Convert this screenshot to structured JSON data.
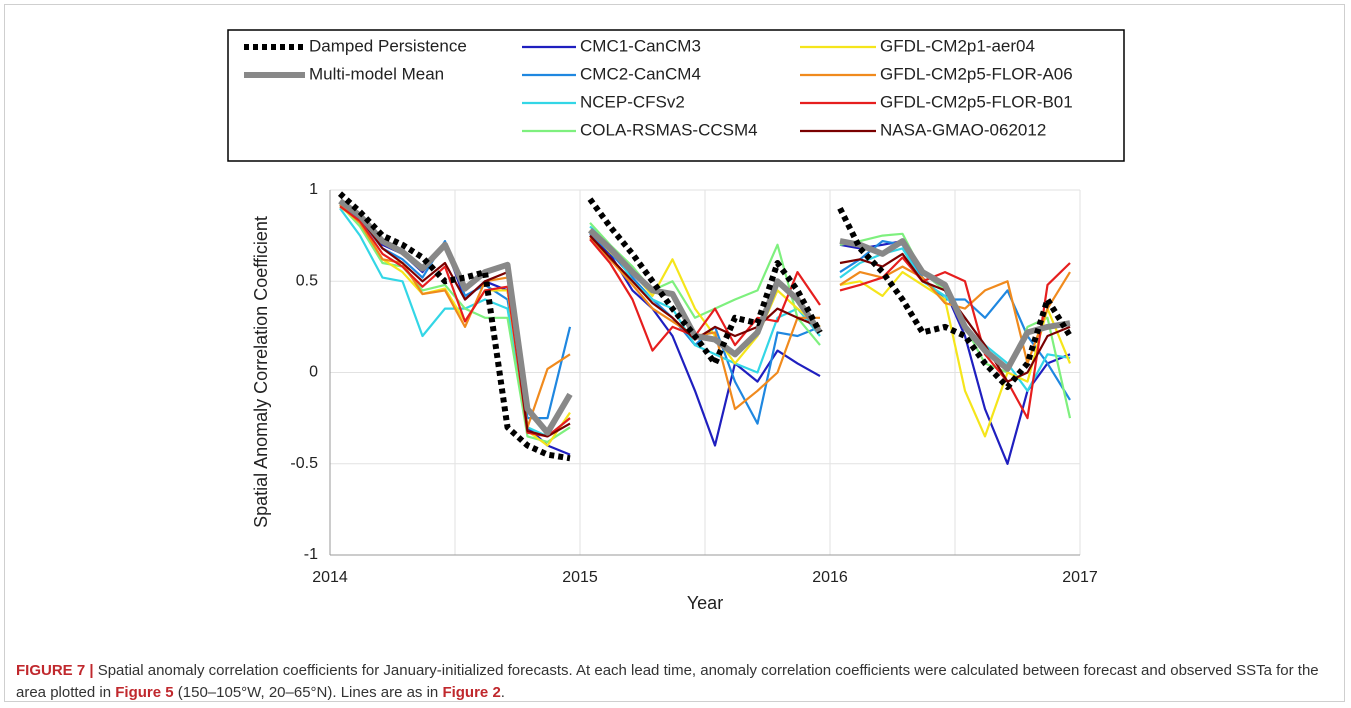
{
  "chart_data": {
    "type": "line",
    "y_label": "Spatial Anomaly Correlation Coefficient",
    "x_label": "Year",
    "x": [
      2014.04,
      2014.12,
      2014.21,
      2014.29,
      2014.37,
      2014.46,
      2014.54,
      2014.62,
      2014.71,
      2014.79,
      2014.87,
      2014.96,
      2015,
      2015.04,
      2015.12,
      2015.21,
      2015.29,
      2015.37,
      2015.46,
      2015.54,
      2015.62,
      2015.71,
      2015.79,
      2015.87,
      2015.96,
      2016,
      2016.04,
      2016.12,
      2016.21,
      2016.29,
      2016.37,
      2016.46,
      2016.54,
      2016.62,
      2016.71,
      2016.79,
      2016.87,
      2016.96
    ],
    "xlim": [
      2014,
      2017
    ],
    "xticks": [
      2014,
      2015,
      2016,
      2017
    ],
    "ylim": [
      -1,
      1
    ],
    "yticks": [
      -1,
      -0.5,
      0,
      0.5,
      1
    ],
    "grid": true,
    "series": [
      {
        "name": "Damped Persistence",
        "color": "#000000",
        "style": "dotted",
        "values": [
          0.98,
          0.88,
          0.75,
          0.7,
          0.63,
          0.5,
          0.52,
          0.55,
          -0.3,
          -0.4,
          -0.45,
          -0.47,
          null,
          0.95,
          0.8,
          0.65,
          0.5,
          0.35,
          0.2,
          0.05,
          0.3,
          0.27,
          0.6,
          0.45,
          0.22,
          null,
          0.9,
          0.68,
          0.55,
          0.4,
          0.22,
          0.25,
          0.2,
          0.05,
          -0.08,
          0.05,
          0.4,
          0.2
        ]
      },
      {
        "name": "Multi-model Mean",
        "color": "#888888",
        "style": "thick",
        "values": [
          0.94,
          0.86,
          0.72,
          0.66,
          0.57,
          0.7,
          0.46,
          0.55,
          0.59,
          -0.2,
          -0.33,
          -0.12,
          null,
          0.78,
          0.68,
          0.55,
          0.45,
          0.43,
          0.2,
          0.18,
          0.1,
          0.22,
          0.5,
          0.4,
          0.22,
          null,
          0.72,
          0.7,
          0.65,
          0.72,
          0.55,
          0.48,
          0.25,
          0.12,
          0.02,
          0.22,
          0.25,
          0.27
        ]
      },
      {
        "name": "CMC1-CanCM3",
        "color": "#1f1fbf",
        "values": [
          0.92,
          0.85,
          0.7,
          0.65,
          0.55,
          0.7,
          0.4,
          0.5,
          0.45,
          -0.3,
          -0.4,
          -0.45,
          null,
          0.75,
          0.65,
          0.45,
          0.35,
          0.2,
          -0.1,
          -0.4,
          0.05,
          -0.05,
          0.12,
          0.05,
          -0.02,
          null,
          0.7,
          0.68,
          0.7,
          0.72,
          0.55,
          0.45,
          0.2,
          -0.2,
          -0.5,
          -0.1,
          0.05,
          0.1
        ]
      },
      {
        "name": "CMC2-CanCM4",
        "color": "#1f87e0",
        "values": [
          0.93,
          0.84,
          0.68,
          0.62,
          0.52,
          0.72,
          0.42,
          0.48,
          0.4,
          -0.25,
          -0.25,
          0.25,
          null,
          0.76,
          0.66,
          0.52,
          0.4,
          0.3,
          0.15,
          0.25,
          -0.05,
          -0.28,
          0.22,
          0.2,
          0.25,
          null,
          0.55,
          0.62,
          0.72,
          0.7,
          0.52,
          0.4,
          0.4,
          0.3,
          0.45,
          0.2,
          0.05,
          -0.15
        ]
      },
      {
        "name": "NCEP-CFSv2",
        "color": "#33d6e6",
        "values": [
          0.9,
          0.75,
          0.52,
          0.5,
          0.2,
          0.35,
          0.35,
          0.4,
          0.35,
          -0.3,
          -0.35,
          -0.25,
          null,
          0.8,
          0.7,
          0.5,
          0.4,
          0.35,
          0.15,
          0.1,
          0.05,
          0.0,
          0.3,
          0.35,
          0.2,
          null,
          0.52,
          0.6,
          0.65,
          0.68,
          0.5,
          0.42,
          0.3,
          0.15,
          0.05,
          -0.1,
          0.1,
          0.08
        ]
      },
      {
        "name": "COLA-RSMAS-CCSM4",
        "color": "#7ef07e",
        "values": [
          0.92,
          0.8,
          0.6,
          0.58,
          0.45,
          0.48,
          0.35,
          0.3,
          0.3,
          -0.35,
          -0.38,
          -0.3,
          null,
          0.82,
          0.7,
          0.58,
          0.45,
          0.5,
          0.3,
          0.35,
          0.4,
          0.45,
          0.7,
          0.3,
          0.15,
          null,
          0.7,
          0.72,
          0.75,
          0.76,
          0.55,
          0.45,
          0.25,
          0.05,
          0.0,
          0.25,
          0.3,
          -0.25
        ]
      },
      {
        "name": "GFDL-CM2p1-aer04",
        "color": "#f5e51b",
        "values": [
          0.91,
          0.82,
          0.62,
          0.55,
          0.43,
          0.46,
          0.28,
          0.45,
          0.45,
          -0.32,
          -0.4,
          -0.22,
          null,
          0.78,
          0.66,
          0.55,
          0.42,
          0.62,
          0.35,
          0.2,
          0.05,
          0.2,
          0.45,
          0.35,
          0.25,
          null,
          0.48,
          0.5,
          0.42,
          0.55,
          0.48,
          0.4,
          -0.1,
          -0.35,
          0.0,
          -0.05,
          0.35,
          0.05
        ]
      },
      {
        "name": "GFDL-CM2p5-FLOR-A06",
        "color": "#f08a1d",
        "values": [
          0.92,
          0.82,
          0.62,
          0.6,
          0.43,
          0.45,
          0.25,
          0.5,
          0.52,
          -0.3,
          0.02,
          0.1,
          null,
          0.74,
          0.62,
          0.48,
          0.35,
          0.28,
          0.2,
          0.22,
          -0.2,
          -0.1,
          0.0,
          0.3,
          0.3,
          null,
          0.48,
          0.55,
          0.52,
          0.58,
          0.52,
          0.38,
          0.35,
          0.45,
          0.5,
          0.05,
          0.35,
          0.55
        ]
      },
      {
        "name": "GFDL-CM2p5-FLOR-B01",
        "color": "#e61e1e",
        "values": [
          0.91,
          0.83,
          0.65,
          0.58,
          0.47,
          0.58,
          0.28,
          0.45,
          0.47,
          -0.33,
          -0.35,
          -0.25,
          null,
          0.73,
          0.6,
          0.4,
          0.12,
          0.25,
          0.2,
          0.35,
          0.15,
          0.3,
          0.28,
          0.55,
          0.37,
          null,
          0.45,
          0.48,
          0.52,
          0.63,
          0.5,
          0.55,
          0.5,
          0.1,
          -0.05,
          -0.25,
          0.48,
          0.6
        ]
      },
      {
        "name": "NASA-GMAO-062012",
        "color": "#7a0000",
        "values": [
          0.93,
          0.85,
          0.68,
          0.6,
          0.5,
          0.6,
          0.4,
          0.5,
          0.55,
          -0.32,
          -0.35,
          -0.28,
          null,
          0.75,
          0.63,
          0.5,
          0.38,
          0.3,
          0.18,
          0.25,
          0.2,
          0.25,
          0.35,
          0.3,
          0.25,
          null,
          0.6,
          0.62,
          0.58,
          0.65,
          0.5,
          0.45,
          0.3,
          0.15,
          -0.05,
          0.0,
          0.2,
          0.25
        ]
      }
    ]
  },
  "caption": {
    "label": "FIGURE 7 |",
    "parts": [
      {
        "text": " Spatial anomaly correlation coefficients for January-initialized forecasts. At each lead time, anomaly correlation coefficients were calculated between forecast and observed SSTa for the area plotted in "
      },
      {
        "text": "Figure 5",
        "bold": true
      },
      {
        "text": " (150–105°W, 20–65°N). Lines are as in "
      },
      {
        "text": "Figure 2",
        "bold": true
      },
      {
        "text": "."
      }
    ]
  }
}
